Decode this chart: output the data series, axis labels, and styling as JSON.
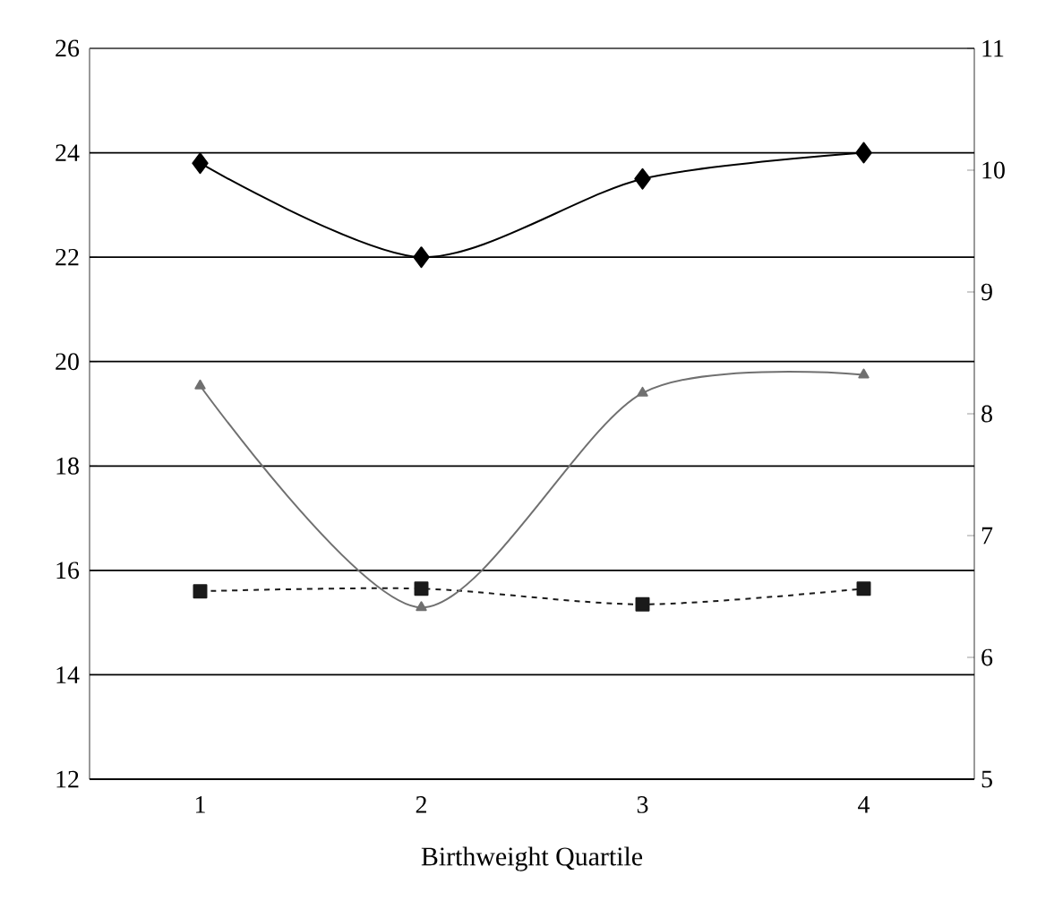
{
  "chart_data": {
    "type": "line",
    "xlabel": "Birthweight Quartile",
    "categories": [
      "1",
      "2",
      "3",
      "4"
    ],
    "ylim": [
      12,
      26
    ],
    "yticks": [
      12,
      14,
      16,
      18,
      20,
      22,
      24,
      26
    ],
    "y2lim": [
      5,
      11
    ],
    "y2ticks": [
      5,
      6,
      7,
      8,
      9,
      10,
      11
    ],
    "grid": "y",
    "series": [
      {
        "color": "#000000",
        "marker": "diamond",
        "line_style": "solid",
        "values": [
          23.8,
          22.0,
          23.5,
          24.0
        ]
      },
      {
        "color": "#707070",
        "marker": "triangle",
        "line_style": "solid",
        "axis": "y2",
        "values": [
          8.23,
          6.41,
          8.17,
          8.32
        ]
      },
      {
        "color": "#1a1a1a",
        "marker": "square",
        "line_style": "dashed",
        "values": [
          15.6,
          15.65,
          15.35,
          15.65
        ]
      }
    ]
  }
}
